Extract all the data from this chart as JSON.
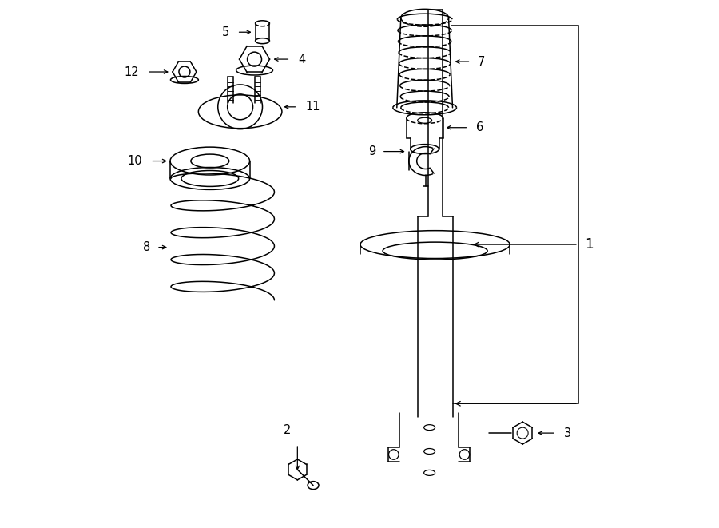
{
  "background_color": "#ffffff",
  "line_color": "#000000",
  "lw": 1.1,
  "fig_width": 9.0,
  "fig_height": 6.61,
  "dpi": 100,
  "xlim": [
    0,
    9.0
  ],
  "ylim": [
    0,
    6.61
  ]
}
